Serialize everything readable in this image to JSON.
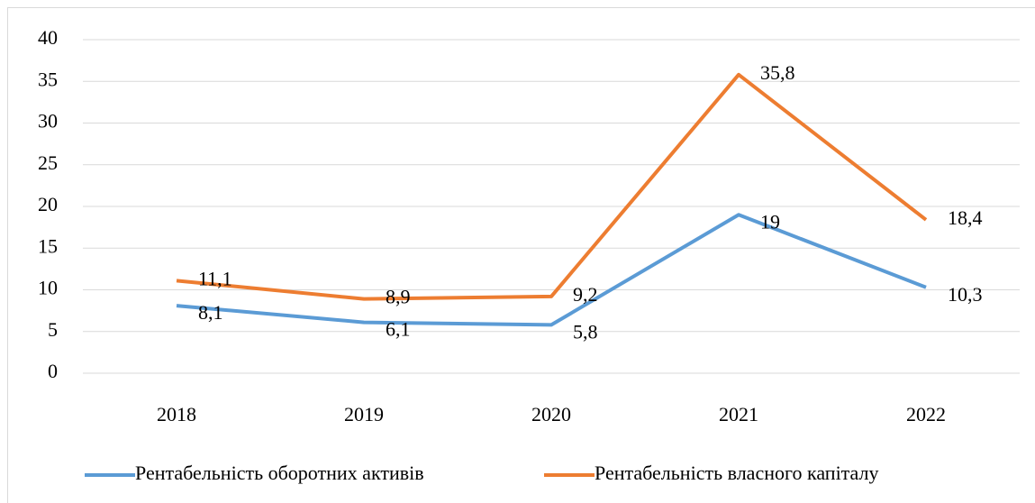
{
  "chart_data": {
    "type": "line",
    "categories": [
      "2018",
      "2019",
      "2020",
      "2021",
      "2022"
    ],
    "series": [
      {
        "name": "Рентабельність оборотних активів",
        "color": "#5b9bd5",
        "values": [
          8.1,
          6.1,
          5.8,
          19,
          10.3
        ],
        "value_labels": [
          "8,1",
          "6,1",
          "5,8",
          "19",
          "10,3"
        ]
      },
      {
        "name": "Рентабельність власного капіталу",
        "color": "#ed7d31",
        "values": [
          11.1,
          8.9,
          9.2,
          35.8,
          18.4
        ],
        "value_labels": [
          "11,1",
          "8,9",
          "9,2",
          "35,8",
          "18,4"
        ]
      }
    ],
    "ylim": [
      0,
      40
    ],
    "yticks": [
      0,
      5,
      10,
      15,
      20,
      25,
      30,
      35,
      40
    ],
    "grid": true,
    "legend": "bottom"
  }
}
